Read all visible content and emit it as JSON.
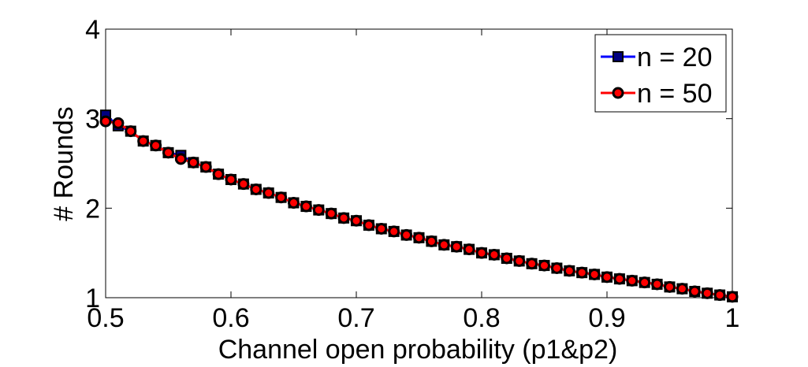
{
  "chart_data": {
    "type": "line",
    "xlabel": "Channel open probability (p1&p2)",
    "ylabel": "# Rounds",
    "xlim": [
      0.5,
      1
    ],
    "ylim": [
      1,
      4
    ],
    "xticks": [
      "0.5",
      "0.6",
      "0.7",
      "0.8",
      "0.9",
      "1"
    ],
    "yticks": [
      "1",
      "2",
      "3",
      "4"
    ],
    "grid": false,
    "legend_position": "top-right",
    "x": [
      0.5,
      0.51,
      0.52,
      0.53,
      0.54,
      0.55,
      0.56,
      0.57,
      0.58,
      0.59,
      0.6,
      0.61,
      0.62,
      0.63,
      0.64,
      0.65,
      0.66,
      0.67,
      0.68,
      0.69,
      0.7,
      0.71,
      0.72,
      0.73,
      0.74,
      0.75,
      0.76,
      0.77,
      0.78,
      0.79,
      0.8,
      0.81,
      0.82,
      0.83,
      0.84,
      0.85,
      0.86,
      0.87,
      0.88,
      0.89,
      0.9,
      0.91,
      0.92,
      0.93,
      0.94,
      0.95,
      0.96,
      0.97,
      0.98,
      0.99,
      1.0
    ],
    "series": [
      {
        "name": "n = 20",
        "color": "#0000ff",
        "marker": "square",
        "values": [
          3.04,
          2.92,
          2.86,
          2.75,
          2.7,
          2.62,
          2.59,
          2.51,
          2.46,
          2.38,
          2.32,
          2.27,
          2.21,
          2.17,
          2.12,
          2.06,
          2.02,
          1.98,
          1.94,
          1.89,
          1.86,
          1.81,
          1.77,
          1.74,
          1.7,
          1.67,
          1.63,
          1.59,
          1.57,
          1.54,
          1.5,
          1.48,
          1.44,
          1.41,
          1.38,
          1.36,
          1.33,
          1.3,
          1.28,
          1.26,
          1.23,
          1.21,
          1.19,
          1.17,
          1.15,
          1.12,
          1.1,
          1.07,
          1.05,
          1.03,
          1.01
        ]
      },
      {
        "name": "n = 50",
        "color": "#ff0000",
        "marker": "circle",
        "values": [
          2.97,
          2.95,
          2.86,
          2.75,
          2.7,
          2.62,
          2.55,
          2.51,
          2.46,
          2.38,
          2.32,
          2.27,
          2.21,
          2.17,
          2.12,
          2.06,
          2.02,
          1.98,
          1.94,
          1.89,
          1.86,
          1.81,
          1.77,
          1.74,
          1.7,
          1.67,
          1.63,
          1.59,
          1.57,
          1.54,
          1.5,
          1.48,
          1.44,
          1.41,
          1.38,
          1.36,
          1.33,
          1.3,
          1.28,
          1.26,
          1.23,
          1.21,
          1.19,
          1.17,
          1.15,
          1.12,
          1.1,
          1.07,
          1.05,
          1.03,
          1.01
        ]
      }
    ]
  }
}
